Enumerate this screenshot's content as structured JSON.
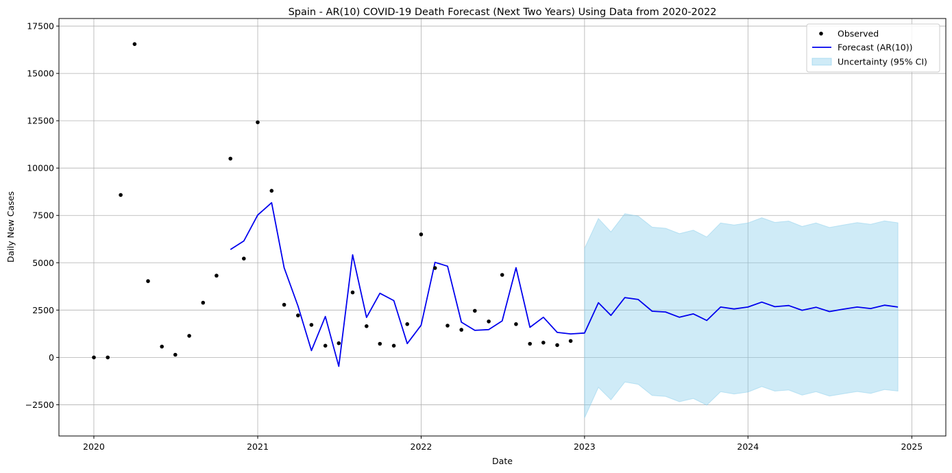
{
  "chart_data": {
    "type": "line",
    "title": "Spain - AR(10) COVID-19 Death Forecast (Next Two Years) Using Data from 2020-2022",
    "xlabel": "Date",
    "ylabel": "Daily New Cases",
    "xlim": [
      "2019-10-15",
      "2025-03-18"
    ],
    "ylim": [
      -4150,
      17900
    ],
    "grid": true,
    "legend_position": "upper right",
    "x_ticks": [
      "2020",
      "2021",
      "2022",
      "2023",
      "2024",
      "2025"
    ],
    "y_ticks": [
      "−2500",
      "0",
      "2500",
      "5000",
      "7500",
      "10000",
      "12500",
      "15000",
      "17500"
    ],
    "x_tick_values": [
      "2020-01-01",
      "2021-01-01",
      "2022-01-01",
      "2023-01-01",
      "2024-01-01",
      "2025-01-01"
    ],
    "y_tick_values": [
      -2500,
      0,
      2500,
      5000,
      7500,
      10000,
      12500,
      15000,
      17500
    ],
    "observed": {
      "name": "Observed",
      "color": "#000000",
      "x": [
        "2020-01-01",
        "2020-02-01",
        "2020-03-01",
        "2020-04-01",
        "2020-05-01",
        "2020-06-01",
        "2020-07-01",
        "2020-08-01",
        "2020-09-01",
        "2020-10-01",
        "2020-11-01",
        "2020-12-01",
        "2021-01-01",
        "2021-02-01",
        "2021-03-01",
        "2021-04-01",
        "2021-05-01",
        "2021-06-01",
        "2021-07-01",
        "2021-08-01",
        "2021-09-01",
        "2021-10-01",
        "2021-11-01",
        "2021-12-01",
        "2022-01-01",
        "2022-02-01",
        "2022-03-01",
        "2022-04-01",
        "2022-05-01",
        "2022-06-01",
        "2022-07-01",
        "2022-08-01",
        "2022-09-01",
        "2022-10-01",
        "2022-11-01",
        "2022-12-01"
      ],
      "y": [
        0,
        0,
        8580,
        16550,
        4030,
        570,
        140,
        1140,
        2890,
        4320,
        10500,
        5220,
        12420,
        8800,
        2780,
        2220,
        1720,
        620,
        750,
        3430,
        1650,
        720,
        620,
        1760,
        6500,
        4720,
        1680,
        1460,
        2460,
        1900,
        4360,
        1760,
        720,
        780,
        650,
        870
      ]
    },
    "forecast": {
      "name": "Forecast (AR(10))",
      "color": "#0000ee",
      "x": [
        "2020-11-01",
        "2020-12-01",
        "2021-01-01",
        "2021-02-01",
        "2021-03-01",
        "2021-04-01",
        "2021-05-01",
        "2021-06-01",
        "2021-07-01",
        "2021-08-01",
        "2021-09-01",
        "2021-10-01",
        "2021-11-01",
        "2021-12-01",
        "2022-01-01",
        "2022-02-01",
        "2022-03-01",
        "2022-04-01",
        "2022-05-01",
        "2022-06-01",
        "2022-07-01",
        "2022-08-01",
        "2022-09-01",
        "2022-10-01",
        "2022-11-01",
        "2022-12-01",
        "2023-01-01",
        "2023-02-01",
        "2023-03-01",
        "2023-04-01",
        "2023-05-01",
        "2023-06-01",
        "2023-07-01",
        "2023-08-01",
        "2023-09-01",
        "2023-10-01",
        "2023-11-01",
        "2023-12-01",
        "2024-01-01",
        "2024-02-01",
        "2024-03-01",
        "2024-04-01",
        "2024-05-01",
        "2024-06-01",
        "2024-07-01",
        "2024-08-01",
        "2024-09-01",
        "2024-10-01",
        "2024-11-01",
        "2024-12-01"
      ],
      "y": [
        5700,
        6150,
        7520,
        8170,
        4730,
        2710,
        360,
        2160,
        -470,
        5420,
        2110,
        3390,
        3000,
        730,
        1700,
        5020,
        4820,
        1860,
        1430,
        1470,
        1930,
        4740,
        1590,
        2120,
        1320,
        1240,
        1290,
        2890,
        2220,
        3160,
        3060,
        2440,
        2400,
        2120,
        2300,
        1950,
        2660,
        2560,
        2660,
        2920,
        2680,
        2740,
        2490,
        2650,
        2420,
        2550,
        2660,
        2580,
        2760,
        2660
      ]
    },
    "uncertainty": {
      "name": "Uncertainty (95% CI)",
      "color": "#87ceeb",
      "x": [
        "2023-01-01",
        "2023-02-01",
        "2023-03-01",
        "2023-04-01",
        "2023-05-01",
        "2023-06-01",
        "2023-07-01",
        "2023-08-01",
        "2023-09-01",
        "2023-10-01",
        "2023-11-01",
        "2023-12-01",
        "2024-01-01",
        "2024-02-01",
        "2024-03-01",
        "2024-04-01",
        "2024-05-01",
        "2024-06-01",
        "2024-07-01",
        "2024-08-01",
        "2024-09-01",
        "2024-10-01",
        "2024-11-01",
        "2024-12-01"
      ],
      "upper": [
        5760,
        7340,
        6630,
        7590,
        7460,
        6880,
        6820,
        6540,
        6720,
        6360,
        7100,
        6990,
        7100,
        7380,
        7130,
        7200,
        6920,
        7100,
        6860,
        6990,
        7120,
        7030,
        7210,
        7110
      ],
      "lower": [
        -3190,
        -1580,
        -2240,
        -1300,
        -1420,
        -2010,
        -2060,
        -2340,
        -2170,
        -2520,
        -1810,
        -1930,
        -1830,
        -1540,
        -1780,
        -1720,
        -1990,
        -1810,
        -2040,
        -1920,
        -1800,
        -1900,
        -1700,
        -1780
      ]
    }
  }
}
